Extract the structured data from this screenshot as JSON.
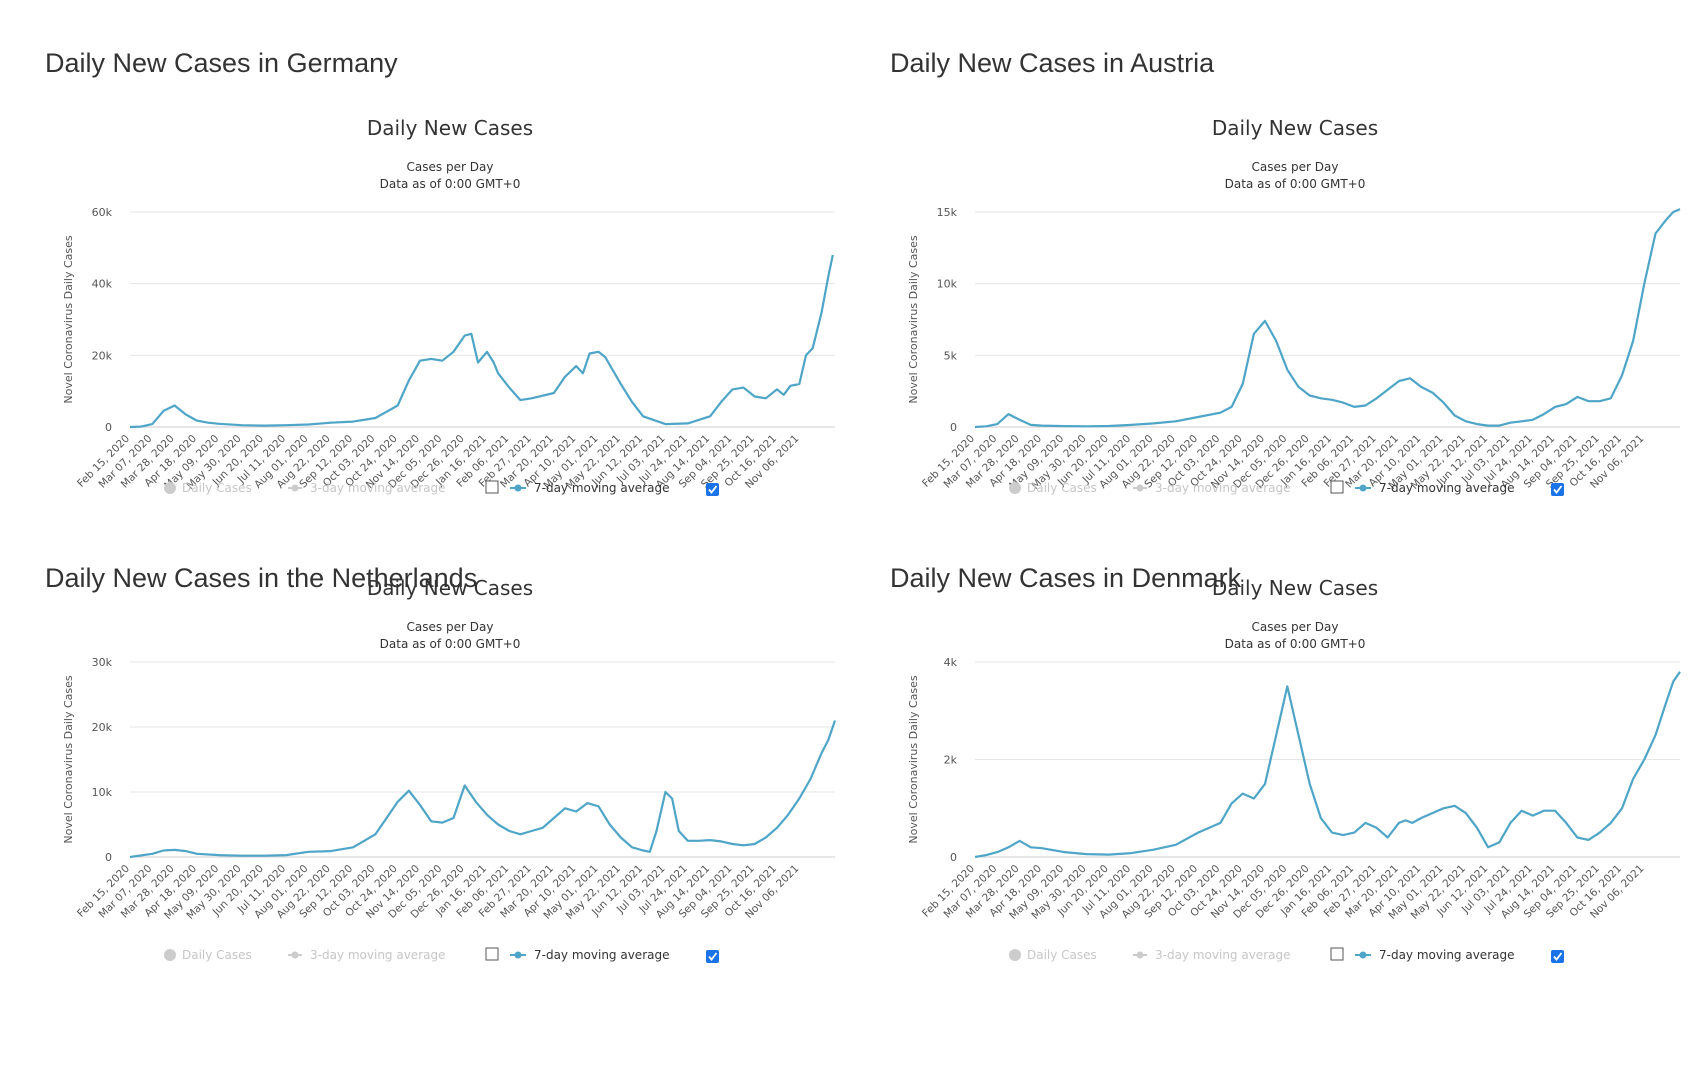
{
  "chart_data": [
    {
      "type": "line",
      "panel_title": "Daily New Cases in Germany",
      "title": "Daily New Cases",
      "subtitle_lines": [
        "Cases per Day",
        "Data as of 0:00 GMT+0"
      ],
      "ylabel": "Novel Coronavirus Daily Cases",
      "ylim": [
        0,
        60000
      ],
      "yticks": [
        0,
        20000,
        40000,
        60000
      ],
      "ytick_labels": [
        "0",
        "20k",
        "40k",
        "60k"
      ],
      "grid": true,
      "line_color": "#4ea5c7",
      "legend": [
        {
          "label": "Daily Cases",
          "active": false
        },
        {
          "label": "3-day moving average",
          "active": false
        },
        {
          "label": "7-day moving average",
          "active": true
        }
      ],
      "x_labels": [
        "Feb 15, 2020",
        "Mar 07, 2020",
        "Mar 28, 2020",
        "Apr 18, 2020",
        "May 09, 2020",
        "May 30, 2020",
        "Jun 20, 2020",
        "Jul 11, 2020",
        "Aug 01, 2020",
        "Aug 22, 2020",
        "Sep 12, 2020",
        "Oct 03, 2020",
        "Oct 24, 2020",
        "Nov 14, 2020",
        "Dec 05, 2020",
        "Dec 26, 2020",
        "Jan 16, 2021",
        "Feb 06, 2021",
        "Feb 27, 2021",
        "Mar 20, 2021",
        "Apr 10, 2021",
        "May 01, 2021",
        "May 22, 2021",
        "Jun 12, 2021",
        "Jul 03, 2021",
        "Jul 24, 2021",
        "Aug 14, 2021",
        "Sep 04, 2021",
        "Sep 25, 2021",
        "Oct 16, 2021",
        "Nov 06, 2021"
      ],
      "series": [
        {
          "x": [
            0,
            0.5,
            1,
            1.5,
            2,
            2.5,
            3,
            3.5,
            4,
            5,
            6,
            7,
            8,
            9,
            10,
            11,
            12,
            12.5,
            13,
            13.5,
            14,
            14.5,
            15,
            15.3,
            15.6,
            16,
            16.3,
            16.5,
            17,
            17.5,
            18,
            19,
            19.5,
            20,
            20.3,
            20.6,
            21,
            21.3,
            22,
            22.5,
            23,
            24,
            25,
            26,
            26.5,
            27,
            27.5,
            28,
            28.5,
            29,
            29.3,
            29.6,
            30,
            30.3,
            30.6,
            31,
            31.3,
            31.5
          ],
          "y": [
            0,
            100,
            800,
            4500,
            6000,
            3500,
            1800,
            1200,
            900,
            500,
            400,
            500,
            700,
            1200,
            1500,
            2500,
            6000,
            13000,
            18500,
            19000,
            18500,
            21000,
            25500,
            26000,
            18000,
            21000,
            18000,
            15000,
            11000,
            7500,
            8000,
            9500,
            14000,
            17000,
            15000,
            20500,
            21000,
            19500,
            12000,
            7000,
            3000,
            800,
            1000,
            3000,
            7000,
            10500,
            11000,
            8500,
            8000,
            10500,
            9000,
            11500,
            12000,
            20000,
            22000,
            32000,
            42000,
            48000
          ]
        }
      ]
    },
    {
      "type": "line",
      "panel_title": "Daily New Cases in Austria",
      "title": "Daily New Cases",
      "subtitle_lines": [
        "Cases per Day",
        "Data as of 0:00 GMT+0"
      ],
      "ylabel": "Novel Coronavirus Daily Cases",
      "ylim": [
        0,
        15000
      ],
      "yticks": [
        0,
        5000,
        10000,
        15000
      ],
      "ytick_labels": [
        "0",
        "5k",
        "10k",
        "15k"
      ],
      "grid": true,
      "line_color": "#4ea5c7",
      "legend": [
        {
          "label": "Daily Cases",
          "active": false
        },
        {
          "label": "3-day moving average",
          "active": false
        },
        {
          "label": "7-day moving average",
          "active": true
        }
      ],
      "x_labels": [
        "Feb 15, 2020",
        "Mar 07, 2020",
        "Mar 28, 2020",
        "Apr 18, 2020",
        "May 09, 2020",
        "May 30, 2020",
        "Jun 20, 2020",
        "Jul 11, 2020",
        "Aug 01, 2020",
        "Aug 22, 2020",
        "Sep 12, 2020",
        "Oct 03, 2020",
        "Oct 24, 2020",
        "Nov 14, 2020",
        "Dec 05, 2020",
        "Dec 26, 2020",
        "Jan 16, 2021",
        "Feb 06, 2021",
        "Feb 27, 2021",
        "Mar 20, 2021",
        "Apr 10, 2021",
        "May 01, 2021",
        "May 22, 2021",
        "Jun 12, 2021",
        "Jul 03, 2021",
        "Jul 24, 2021",
        "Aug 14, 2021",
        "Sep 04, 2021",
        "Sep 25, 2021",
        "Oct 16, 2021",
        "Nov 06, 2021"
      ],
      "series": [
        {
          "x": [
            0,
            0.5,
            1,
            1.5,
            2,
            2.5,
            3,
            4,
            5,
            6,
            7,
            8,
            9,
            10,
            11,
            11.5,
            12,
            12.5,
            13,
            13.5,
            14,
            14.5,
            15,
            15.5,
            16,
            16.5,
            17,
            17.5,
            18,
            18.5,
            19,
            19.5,
            20,
            20.5,
            21,
            21.5,
            22,
            22.5,
            23,
            23.5,
            24,
            24.5,
            25,
            25.5,
            26,
            26.5,
            27,
            27.5,
            28,
            28.5,
            29,
            29.5,
            30,
            30.5,
            31,
            31.3,
            31.6
          ],
          "y": [
            0,
            50,
            200,
            900,
            500,
            150,
            100,
            60,
            50,
            70,
            150,
            250,
            400,
            700,
            1000,
            1400,
            3000,
            6500,
            7400,
            6000,
            4000,
            2800,
            2200,
            2000,
            1900,
            1700,
            1400,
            1500,
            2000,
            2600,
            3200,
            3400,
            2800,
            2400,
            1700,
            800,
            400,
            200,
            100,
            100,
            300,
            400,
            500,
            900,
            1400,
            1600,
            2100,
            1800,
            1800,
            2000,
            3600,
            6000,
            10000,
            13500,
            14500,
            15000,
            15200
          ]
        }
      ]
    },
    {
      "type": "line",
      "panel_title": "Daily New Cases in the Netherlands",
      "title": "Daily New Cases",
      "subtitle_lines": [
        "Cases per Day",
        "Data as of 0:00 GMT+0"
      ],
      "ylabel": "Novel Coronavirus Daily Cases",
      "ylim": [
        0,
        30000
      ],
      "yticks": [
        0,
        10000,
        20000,
        30000
      ],
      "ytick_labels": [
        "0",
        "10k",
        "20k",
        "30k"
      ],
      "grid": true,
      "line_color": "#4ea5c7",
      "legend": [
        {
          "label": "Daily Cases",
          "active": false
        },
        {
          "label": "3-day moving average",
          "active": false
        },
        {
          "label": "7-day moving average",
          "active": true
        }
      ],
      "x_labels": [
        "Feb 15, 2020",
        "Mar 07, 2020",
        "Mar 28, 2020",
        "Apr 18, 2020",
        "May 09, 2020",
        "May 30, 2020",
        "Jun 20, 2020",
        "Jul 11, 2020",
        "Aug 01, 2020",
        "Aug 22, 2020",
        "Sep 12, 2020",
        "Oct 03, 2020",
        "Oct 24, 2020",
        "Nov 14, 2020",
        "Dec 05, 2020",
        "Dec 26, 2020",
        "Jan 16, 2021",
        "Feb 06, 2021",
        "Feb 27, 2021",
        "Mar 20, 2021",
        "Apr 10, 2021",
        "May 01, 2021",
        "May 22, 2021",
        "Jun 12, 2021",
        "Jul 03, 2021",
        "Jul 24, 2021",
        "Aug 14, 2021",
        "Sep 04, 2021",
        "Sep 25, 2021",
        "Oct 16, 2021",
        "Nov 06, 2021"
      ],
      "series": [
        {
          "x": [
            0,
            1,
            1.5,
            2,
            2.5,
            3,
            4,
            5,
            6,
            7,
            8,
            9,
            10,
            11,
            11.5,
            12,
            12.5,
            13,
            13.5,
            14,
            14.5,
            15,
            15.5,
            16,
            16.5,
            17,
            17.5,
            18,
            18.5,
            19,
            19.5,
            20,
            20.5,
            21,
            21.5,
            22,
            22.5,
            23,
            23.3,
            23.6,
            24,
            24.3,
            24.6,
            25,
            25.5,
            26,
            26.5,
            27,
            27.5,
            28,
            28.5,
            29,
            29.5,
            30,
            30.5,
            31,
            31.3,
            31.6
          ],
          "y": [
            0,
            500,
            1000,
            1100,
            900,
            500,
            300,
            200,
            200,
            300,
            800,
            900,
            1500,
            3500,
            6000,
            8500,
            10200,
            8000,
            5500,
            5300,
            6000,
            11000,
            8500,
            6500,
            5000,
            4000,
            3500,
            4000,
            4500,
            6000,
            7500,
            7000,
            8300,
            7800,
            5000,
            3000,
            1500,
            1000,
            800,
            4000,
            10000,
            9000,
            4000,
            2500,
            2500,
            2600,
            2400,
            2000,
            1800,
            2000,
            3000,
            4500,
            6500,
            9000,
            12000,
            16000,
            18000,
            21000
          ]
        }
      ]
    },
    {
      "type": "line",
      "panel_title": "Daily New Cases in Denmark",
      "title": "Daily New Cases",
      "subtitle_lines": [
        "Cases per Day",
        "Data as of 0:00 GMT+0"
      ],
      "ylabel": "Novel Coronavirus Daily Cases",
      "ylim": [
        0,
        4000
      ],
      "yticks": [
        0,
        2000,
        4000
      ],
      "ytick_labels": [
        "0",
        "2k",
        "4k"
      ],
      "grid": true,
      "line_color": "#4ea5c7",
      "legend": [
        {
          "label": "Daily Cases",
          "active": false
        },
        {
          "label": "3-day moving average",
          "active": false
        },
        {
          "label": "7-day moving average",
          "active": true
        }
      ],
      "x_labels": [
        "Feb 15, 2020",
        "Mar 07, 2020",
        "Mar 28, 2020",
        "Apr 18, 2020",
        "May 09, 2020",
        "May 30, 2020",
        "Jun 20, 2020",
        "Jul 11, 2020",
        "Aug 01, 2020",
        "Aug 22, 2020",
        "Sep 12, 2020",
        "Oct 03, 2020",
        "Oct 24, 2020",
        "Nov 14, 2020",
        "Dec 05, 2020",
        "Dec 26, 2020",
        "Jan 16, 2021",
        "Feb 06, 2021",
        "Feb 27, 2021",
        "Mar 20, 2021",
        "Apr 10, 2021",
        "May 01, 2021",
        "May 22, 2021",
        "Jun 12, 2021",
        "Jul 03, 2021",
        "Jul 24, 2021",
        "Aug 14, 2021",
        "Sep 04, 2021",
        "Sep 25, 2021",
        "Oct 16, 2021",
        "Nov 06, 2021"
      ],
      "series": [
        {
          "x": [
            0,
            0.5,
            1,
            1.5,
            2,
            2.5,
            3,
            4,
            5,
            6,
            7,
            8,
            9,
            10,
            11,
            11.5,
            12,
            12.5,
            13,
            13.5,
            14,
            14.5,
            15,
            15.5,
            16,
            16.5,
            17,
            17.5,
            18,
            18.5,
            19,
            19.3,
            19.6,
            20,
            20.5,
            21,
            21.5,
            22,
            22.5,
            23,
            23.5,
            24,
            24.5,
            25,
            25.5,
            26,
            26.5,
            27,
            27.5,
            28,
            28.5,
            29,
            29.5,
            30,
            30.5,
            31,
            31.3,
            31.6
          ],
          "y": [
            0,
            40,
            100,
            200,
            330,
            200,
            180,
            100,
            60,
            50,
            80,
            150,
            250,
            500,
            700,
            1100,
            1300,
            1200,
            1500,
            2500,
            3500,
            2500,
            1500,
            800,
            500,
            450,
            500,
            700,
            600,
            400,
            700,
            750,
            700,
            800,
            900,
            1000,
            1050,
            900,
            600,
            200,
            300,
            700,
            950,
            850,
            950,
            950,
            700,
            400,
            350,
            500,
            700,
            1000,
            1600,
            2000,
            2500,
            3200,
            3600,
            3800
          ]
        }
      ]
    }
  ]
}
